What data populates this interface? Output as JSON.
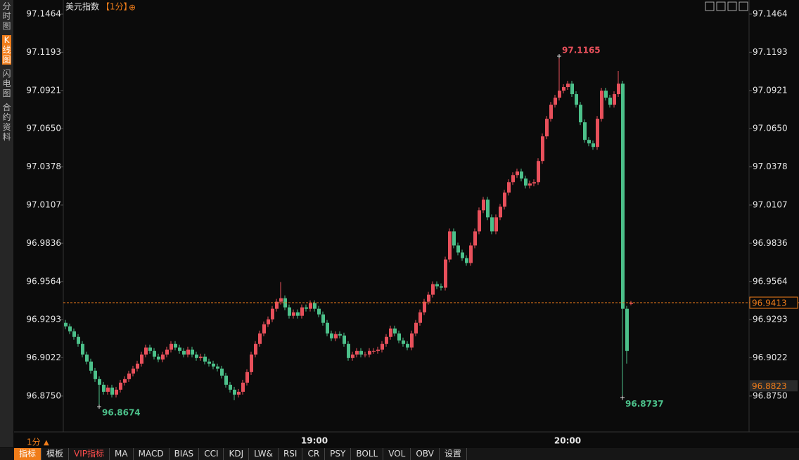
{
  "chart_data": {
    "type": "candlestick",
    "title": "美元指数",
    "period": "【1分】",
    "categories": [
      null,
      null,
      null,
      null,
      null,
      null,
      null,
      null,
      null,
      null,
      null,
      null,
      null,
      null,
      null,
      null,
      null,
      null,
      null,
      null,
      null,
      null,
      null,
      null,
      null,
      null,
      null,
      null,
      null,
      null,
      null,
      null,
      null,
      null,
      null,
      null,
      null,
      null,
      null,
      null,
      null,
      null,
      null,
      null,
      null,
      null,
      null,
      null,
      null,
      null,
      null,
      null,
      null,
      null,
      null,
      null,
      null,
      null,
      null,
      "19:00",
      null,
      null,
      null,
      null,
      null,
      null,
      null,
      null,
      null,
      null,
      null,
      null,
      null,
      null,
      null,
      null,
      null,
      null,
      null,
      null,
      null,
      null,
      null,
      null,
      null,
      null,
      null,
      null,
      null,
      null,
      null,
      null,
      null,
      null,
      null,
      null,
      null,
      null,
      null,
      null,
      null,
      null,
      null,
      null,
      null,
      null,
      null,
      null,
      null,
      null,
      null,
      null,
      null,
      null,
      null,
      null,
      null,
      null,
      null,
      "20:00",
      null,
      null,
      null,
      null,
      null,
      null,
      null,
      null,
      null,
      null,
      null,
      null,
      null,
      null,
      null
    ],
    "open": [
      96.927,
      96.9245,
      96.921,
      96.917,
      96.912,
      96.9045,
      96.8995,
      96.893,
      96.887,
      96.883,
      96.878,
      96.881,
      96.876,
      96.8795,
      96.8845,
      96.887,
      96.891,
      96.8945,
      96.898,
      96.9045,
      96.9095,
      96.907,
      96.903,
      96.901,
      96.9045,
      96.908,
      96.912,
      96.9095,
      96.907,
      96.9045,
      96.908,
      96.9045,
      96.902,
      96.903,
      96.8995,
      96.898,
      96.896,
      96.8945,
      96.8895,
      96.883,
      96.8795,
      96.876,
      96.878,
      96.8845,
      96.892,
      96.9045,
      96.912,
      96.9195,
      96.926,
      96.9295,
      96.937,
      96.942,
      96.9445,
      96.938,
      96.932,
      96.9345,
      96.932,
      96.938,
      96.937,
      96.941,
      96.937,
      96.933,
      96.927,
      96.9195,
      96.916,
      96.919,
      96.918,
      96.912,
      96.902,
      96.9045,
      96.907,
      96.9045,
      96.9045,
      96.907,
      96.907,
      96.908,
      96.912,
      96.917,
      96.923,
      96.9195,
      96.9145,
      96.912,
      96.9095,
      96.9195,
      96.927,
      96.9345,
      96.942,
      96.947,
      96.9545,
      96.953,
      96.952,
      96.972,
      96.992,
      96.982,
      96.977,
      96.973,
      96.9695,
      96.982,
      96.992,
      97.007,
      97.0145,
      97.002,
      96.992,
      97.002,
      97.0095,
      97.0195,
      97.027,
      97.032,
      97.0345,
      97.0295,
      97.0245,
      97.026,
      97.027,
      97.042,
      97.0595,
      97.072,
      97.082,
      97.087,
      97.092,
      97.0945,
      97.097,
      97.0895,
      97.082,
      97.0695,
      97.057,
      97.0545,
      97.052,
      97.072,
      97.092,
      97.087,
      97.082,
      97.0895,
      97.097,
      96.937,
      96.9405
    ],
    "high": [
      96.929,
      96.9265,
      96.923,
      96.919,
      96.914,
      96.9065,
      96.9015,
      96.895,
      96.889,
      96.885,
      96.883,
      96.883,
      96.8815,
      96.8865,
      96.889,
      96.893,
      96.8965,
      96.9,
      96.9065,
      96.9115,
      96.9115,
      96.909,
      96.905,
      96.9065,
      96.91,
      96.914,
      96.914,
      96.9115,
      96.909,
      96.91,
      96.91,
      96.9065,
      96.905,
      96.905,
      96.9015,
      96.9,
      96.898,
      96.8965,
      96.8915,
      96.885,
      96.8815,
      96.88,
      96.8865,
      96.894,
      96.9065,
      96.914,
      96.9215,
      96.928,
      96.9315,
      96.939,
      96.944,
      96.956,
      96.9465,
      96.94,
      96.9365,
      96.9365,
      96.94,
      96.94,
      96.943,
      96.943,
      96.939,
      96.935,
      96.929,
      96.9215,
      96.921,
      96.921,
      96.92,
      96.914,
      96.9065,
      96.909,
      96.909,
      96.9065,
      96.909,
      96.909,
      96.91,
      96.914,
      96.919,
      96.925,
      96.925,
      96.9215,
      96.9165,
      96.914,
      96.9215,
      96.929,
      96.9365,
      96.944,
      96.949,
      96.9565,
      96.9565,
      96.955,
      96.974,
      96.994,
      96.994,
      96.984,
      96.979,
      96.975,
      96.984,
      96.994,
      97.009,
      97.0165,
      97.0165,
      97.004,
      97.004,
      97.0115,
      97.0215,
      97.029,
      97.034,
      97.0365,
      97.0365,
      97.0315,
      97.028,
      97.029,
      97.044,
      97.0615,
      97.074,
      97.084,
      97.089,
      97.1165,
      97.0965,
      97.099,
      97.099,
      97.0915,
      97.084,
      97.0715,
      97.059,
      97.0565,
      97.074,
      97.094,
      97.094,
      97.089,
      97.0915,
      97.106,
      97.099,
      96.939,
      96.9425
    ],
    "low": [
      96.9225,
      96.919,
      96.915,
      96.91,
      96.9025,
      96.8975,
      96.891,
      96.885,
      96.8674,
      96.876,
      96.876,
      96.874,
      96.874,
      96.8775,
      96.8825,
      96.885,
      96.889,
      96.8925,
      96.896,
      96.9025,
      96.905,
      96.901,
      96.899,
      96.899,
      96.9025,
      96.906,
      96.9075,
      96.905,
      96.9025,
      96.9025,
      96.9025,
      96.9,
      96.9,
      96.8975,
      96.896,
      96.894,
      96.8925,
      96.8875,
      96.881,
      96.8775,
      96.872,
      96.874,
      96.876,
      96.8825,
      96.89,
      96.9025,
      96.91,
      96.9175,
      96.924,
      96.9275,
      96.935,
      96.94,
      96.936,
      96.93,
      96.93,
      96.93,
      96.93,
      96.935,
      96.935,
      96.935,
      96.931,
      96.925,
      96.9175,
      96.914,
      96.914,
      96.916,
      96.91,
      96.9,
      96.9,
      96.9025,
      96.9025,
      96.9025,
      96.9025,
      96.905,
      96.905,
      96.906,
      96.91,
      96.915,
      96.9175,
      96.9125,
      96.91,
      96.9075,
      96.9075,
      96.9175,
      96.925,
      96.9325,
      96.94,
      96.945,
      96.951,
      96.95,
      96.95,
      96.97,
      96.98,
      96.975,
      96.971,
      96.9675,
      96.9675,
      96.98,
      96.99,
      97.005,
      97.0,
      96.99,
      96.99,
      97.0,
      97.0075,
      97.0175,
      97.025,
      97.03,
      97.0275,
      97.0225,
      97.0225,
      97.024,
      97.025,
      97.04,
      97.0575,
      97.07,
      97.08,
      97.085,
      97.09,
      97.0925,
      97.0875,
      97.08,
      97.0675,
      97.055,
      97.0525,
      97.05,
      97.05,
      97.07,
      97.085,
      97.08,
      97.08,
      97.0875,
      96.8737,
      96.898,
      96.9395
    ],
    "close": [
      96.9245,
      96.921,
      96.917,
      96.912,
      96.9045,
      96.8995,
      96.893,
      96.887,
      96.883,
      96.878,
      96.881,
      96.876,
      96.8795,
      96.8845,
      96.887,
      96.891,
      96.8945,
      96.898,
      96.9045,
      96.9095,
      96.907,
      96.903,
      96.901,
      96.9045,
      96.908,
      96.912,
      96.9095,
      96.907,
      96.9045,
      96.908,
      96.9045,
      96.902,
      96.903,
      96.8995,
      96.898,
      96.896,
      96.8945,
      96.8895,
      96.883,
      96.8795,
      96.876,
      96.878,
      96.8845,
      96.892,
      96.9045,
      96.912,
      96.9195,
      96.926,
      96.9295,
      96.937,
      96.942,
      96.9445,
      96.938,
      96.932,
      96.9345,
      96.932,
      96.938,
      96.937,
      96.941,
      96.937,
      96.933,
      96.927,
      96.9195,
      96.916,
      96.919,
      96.918,
      96.912,
      96.902,
      96.9045,
      96.907,
      96.9045,
      96.9045,
      96.907,
      96.907,
      96.908,
      96.912,
      96.917,
      96.923,
      96.9195,
      96.9145,
      96.912,
      96.9095,
      96.9195,
      96.927,
      96.9345,
      96.942,
      96.947,
      96.9545,
      96.953,
      96.952,
      96.972,
      96.992,
      96.982,
      96.977,
      96.973,
      96.9695,
      96.982,
      96.992,
      97.007,
      97.0145,
      97.002,
      96.992,
      97.002,
      97.0095,
      97.0195,
      97.027,
      97.032,
      97.0345,
      97.0295,
      97.0245,
      97.026,
      97.027,
      97.042,
      97.0595,
      97.072,
      97.082,
      97.087,
      97.092,
      97.0945,
      97.097,
      97.0895,
      97.082,
      97.0695,
      97.057,
      97.0545,
      97.052,
      97.072,
      97.092,
      97.087,
      97.082,
      97.0895,
      97.097,
      96.937,
      96.907,
      96.9413
    ],
    "up_color": "#e8505b",
    "down_color": "#4cc08a",
    "ylim": [
      96.8495,
      97.1539
    ],
    "yticks": [
      97.1464,
      97.1193,
      97.0921,
      {
        "value": 97.065,
        "label": "97.0650"
      },
      97.0378,
      97.0107,
      96.9836,
      96.9564,
      96.9293,
      96.9022,
      {
        "value": 96.875,
        "label": "96.8750"
      }
    ],
    "annotations": [
      97.1165,
      96.8674,
      96.8737
    ],
    "last_price": 96.9413,
    "marker_price": 96.8823
  },
  "ui": {
    "sidebar": [
      "分时图",
      "K线图",
      "闪电图",
      "合约资料"
    ],
    "period_button": "1分",
    "toolbar": [
      "指标",
      "模板",
      "VIP指标",
      "MA",
      "MACD",
      "BIAS",
      "CCI",
      "KDJ",
      "LW&",
      "RSI",
      "CR",
      "PSY",
      "BOLL",
      "VOL",
      "OBV",
      "设置"
    ]
  }
}
